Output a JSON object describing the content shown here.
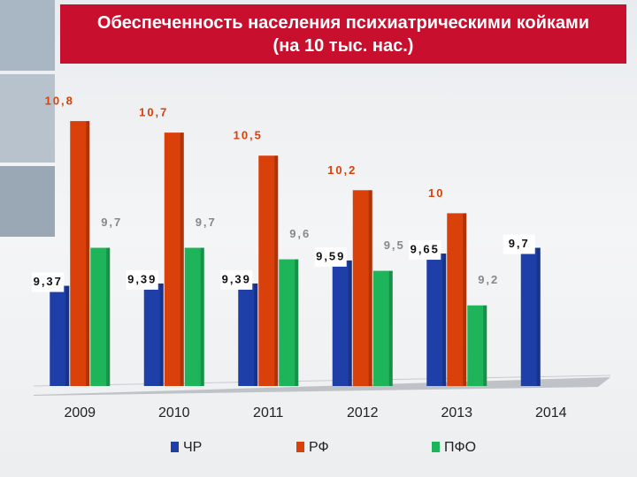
{
  "chart_data": {
    "type": "bar",
    "title": "Обеспеченность населения психиатрическими койками (на 10 тыс. нас.)",
    "categories": [
      "2009",
      "2010",
      "2011",
      "2012",
      "2013",
      "2014"
    ],
    "series": [
      {
        "name": "ЧР",
        "color": "#1f3fa8",
        "values": [
          9.37,
          9.39,
          9.39,
          9.59,
          9.65,
          9.7
        ],
        "value_labels": [
          "9,37",
          "9,39",
          "9,39",
          "9,59",
          "9,65",
          "9,7"
        ]
      },
      {
        "name": "РФ",
        "color": "#d9400a",
        "values": [
          10.8,
          10.7,
          10.5,
          10.2,
          10,
          null
        ],
        "value_labels": [
          "10,8",
          "10,7",
          "10,5",
          "10,2",
          "10",
          null
        ]
      },
      {
        "name": "ПФО",
        "color": "#1db45a",
        "values": [
          9.7,
          9.7,
          9.6,
          9.5,
          9.2,
          null
        ],
        "value_labels": [
          "9,7",
          "9,7",
          "9,6",
          "9,5",
          "9,2",
          null
        ]
      }
    ],
    "ylim": [
      8.5,
      11
    ]
  }
}
